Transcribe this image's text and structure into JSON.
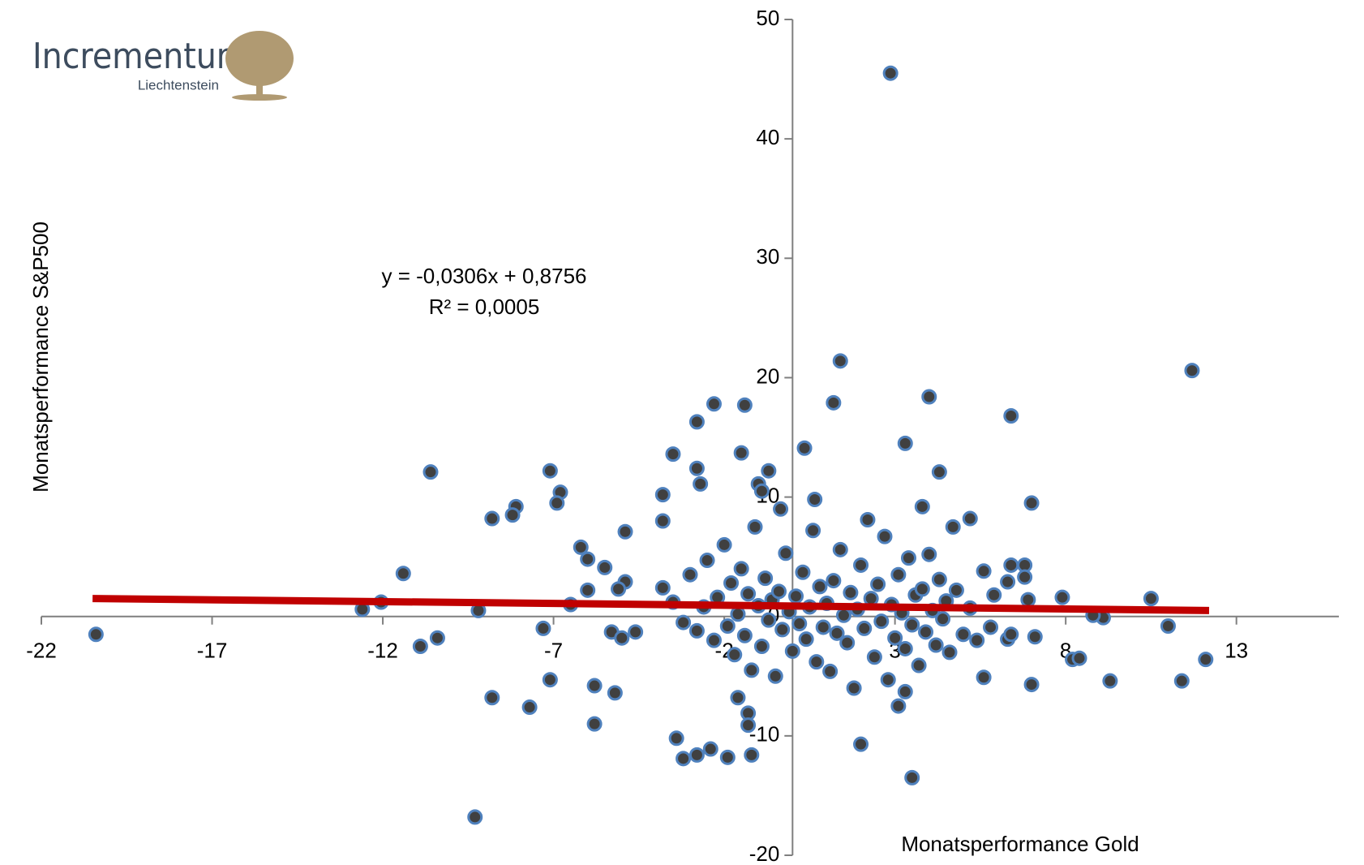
{
  "logo": {
    "name": "Incrementum",
    "sub": "Liechtenstein"
  },
  "chart_data": {
    "type": "scatter",
    "x_label": "Monatsperformance Gold",
    "y_label": "Monatsperformance S&P500",
    "annotations": [
      "y = -0,0306x + 0,8756",
      "R² = 0,0005"
    ],
    "xlim": [
      -22,
      16
    ],
    "ylim": [
      -20,
      50
    ],
    "xticks": [
      -22,
      -17,
      -12,
      -7,
      -2,
      3,
      8,
      13
    ],
    "yticks": [
      -20,
      -10,
      0,
      10,
      20,
      30,
      40,
      50
    ],
    "marker_fill": "#404040",
    "marker_edge": "#4f81bd",
    "trendline": {
      "slope": -0.0306,
      "intercept": 0.8756,
      "x": [
        -20.5,
        12.2
      ],
      "color": "#c00000"
    },
    "series": [
      {
        "name": "Monatsperformance",
        "x": [
          2.87,
          -20.4,
          -10.6,
          -9.3,
          1.4,
          11.7,
          6.4,
          4.0,
          1.2,
          -1.4,
          -2.3,
          -2.8,
          -7.1,
          -6.8,
          -6.9,
          -3.5,
          -2.8,
          -2.7,
          -1.5,
          -0.7,
          -1.0,
          -0.9,
          0.35,
          3.3,
          4.3,
          7.0,
          0.65,
          -0.35,
          3.8,
          -3.8,
          -3.8,
          -8.1,
          -8.2,
          -8.8,
          5.2,
          4.7,
          -11.4,
          -12.05,
          -12.6,
          -9.2,
          -10.9,
          -10.4,
          -7.3,
          -7.1,
          -8.8,
          -7.7,
          -5.8,
          -5.8,
          -5.2,
          -6.2,
          -6.0,
          -5.5,
          -4.9,
          -6.0,
          -6.5,
          -4.9,
          -5.1,
          -5.3,
          -5.0,
          -4.6,
          -3.4,
          -3.2,
          -2.8,
          -2.4,
          -1.9,
          -1.2,
          -1.6,
          -1.3,
          -1.3,
          2.0,
          3.5,
          3.1,
          3.3,
          5.6,
          7.0,
          8.2,
          8.4,
          9.3,
          11.4,
          12.1,
          11.0,
          10.5,
          9.1,
          8.8,
          7.9,
          6.8,
          6.8,
          6.4,
          6.3,
          5.9,
          6.3,
          6.4,
          6.9,
          7.1,
          -3.8,
          -3.5,
          -3.2,
          -3.0,
          -2.8,
          -2.6,
          -2.5,
          -2.3,
          -2.2,
          -2.0,
          -1.9,
          -1.8,
          -1.7,
          -1.6,
          -1.5,
          -1.4,
          -1.3,
          -1.2,
          -1.1,
          -1.0,
          -0.9,
          -0.8,
          -0.7,
          -0.6,
          -0.5,
          -0.4,
          -0.3,
          -0.2,
          -0.1,
          0.0,
          0.1,
          0.2,
          0.3,
          0.4,
          0.5,
          0.6,
          0.7,
          0.8,
          0.9,
          1.0,
          1.1,
          1.2,
          1.3,
          1.4,
          1.5,
          1.6,
          1.7,
          1.8,
          1.9,
          2.0,
          2.1,
          2.2,
          2.3,
          2.4,
          2.5,
          2.6,
          2.7,
          2.8,
          2.9,
          3.0,
          3.1,
          3.2,
          3.3,
          3.4,
          3.5,
          3.6,
          3.7,
          3.8,
          3.9,
          4.0,
          4.1,
          4.2,
          4.3,
          4.4,
          4.5,
          4.6,
          4.8,
          5.0,
          5.2,
          5.4,
          5.6,
          5.8
        ],
        "y": [
          45.5,
          -1.5,
          12.1,
          -16.8,
          21.4,
          20.6,
          16.8,
          18.4,
          17.9,
          17.7,
          17.8,
          16.3,
          12.2,
          10.4,
          9.5,
          13.6,
          12.4,
          11.1,
          13.7,
          12.2,
          11.1,
          10.5,
          14.1,
          14.5,
          12.1,
          9.5,
          9.8,
          9.0,
          9.2,
          10.2,
          8.0,
          9.2,
          8.5,
          8.2,
          8.2,
          7.5,
          3.6,
          1.2,
          0.6,
          0.5,
          -2.5,
          -1.8,
          -1.0,
          -5.3,
          -6.8,
          -7.6,
          -9.0,
          -5.8,
          -6.4,
          5.8,
          4.8,
          4.1,
          7.1,
          2.2,
          1.0,
          2.9,
          2.3,
          -1.3,
          -1.8,
          -1.3,
          -10.2,
          -11.9,
          -11.6,
          -11.1,
          -11.8,
          -11.6,
          -6.8,
          -8.1,
          -9.1,
          -10.7,
          -13.5,
          -7.5,
          -6.3,
          -5.1,
          -5.7,
          -3.6,
          -3.5,
          -5.4,
          -5.4,
          -3.6,
          -0.8,
          1.5,
          -0.1,
          0.1,
          1.6,
          4.3,
          3.3,
          4.3,
          2.9,
          1.8,
          -1.9,
          -1.5,
          1.4,
          -1.7,
          2.4,
          1.2,
          -0.5,
          3.5,
          -1.2,
          0.8,
          4.7,
          -2.0,
          1.6,
          6.0,
          -0.8,
          2.8,
          -3.2,
          0.2,
          4.0,
          -1.6,
          1.9,
          -4.5,
          7.5,
          0.9,
          -2.5,
          3.2,
          -0.3,
          1.4,
          -5.0,
          2.1,
          -1.1,
          5.3,
          0.4,
          -2.9,
          1.7,
          -0.6,
          3.7,
          -1.9,
          0.8,
          7.2,
          -3.8,
          2.5,
          -0.9,
          1.1,
          -4.6,
          3.0,
          -1.4,
          5.6,
          0.1,
          -2.2,
          2.0,
          -6.0,
          0.6,
          4.3,
          -1.0,
          8.1,
          1.5,
          -3.4,
          2.7,
          -0.4,
          6.7,
          -5.3,
          1.0,
          -1.8,
          3.5,
          0.3,
          -2.7,
          4.9,
          -0.7,
          1.8,
          -4.1,
          2.3,
          -1.3,
          5.2,
          0.5,
          -2.4,
          3.1,
          -0.2,
          1.3,
          -3.0,
          2.2,
          -1.5,
          0.7,
          -2.0,
          3.8,
          -0.9
        ]
      }
    ]
  }
}
